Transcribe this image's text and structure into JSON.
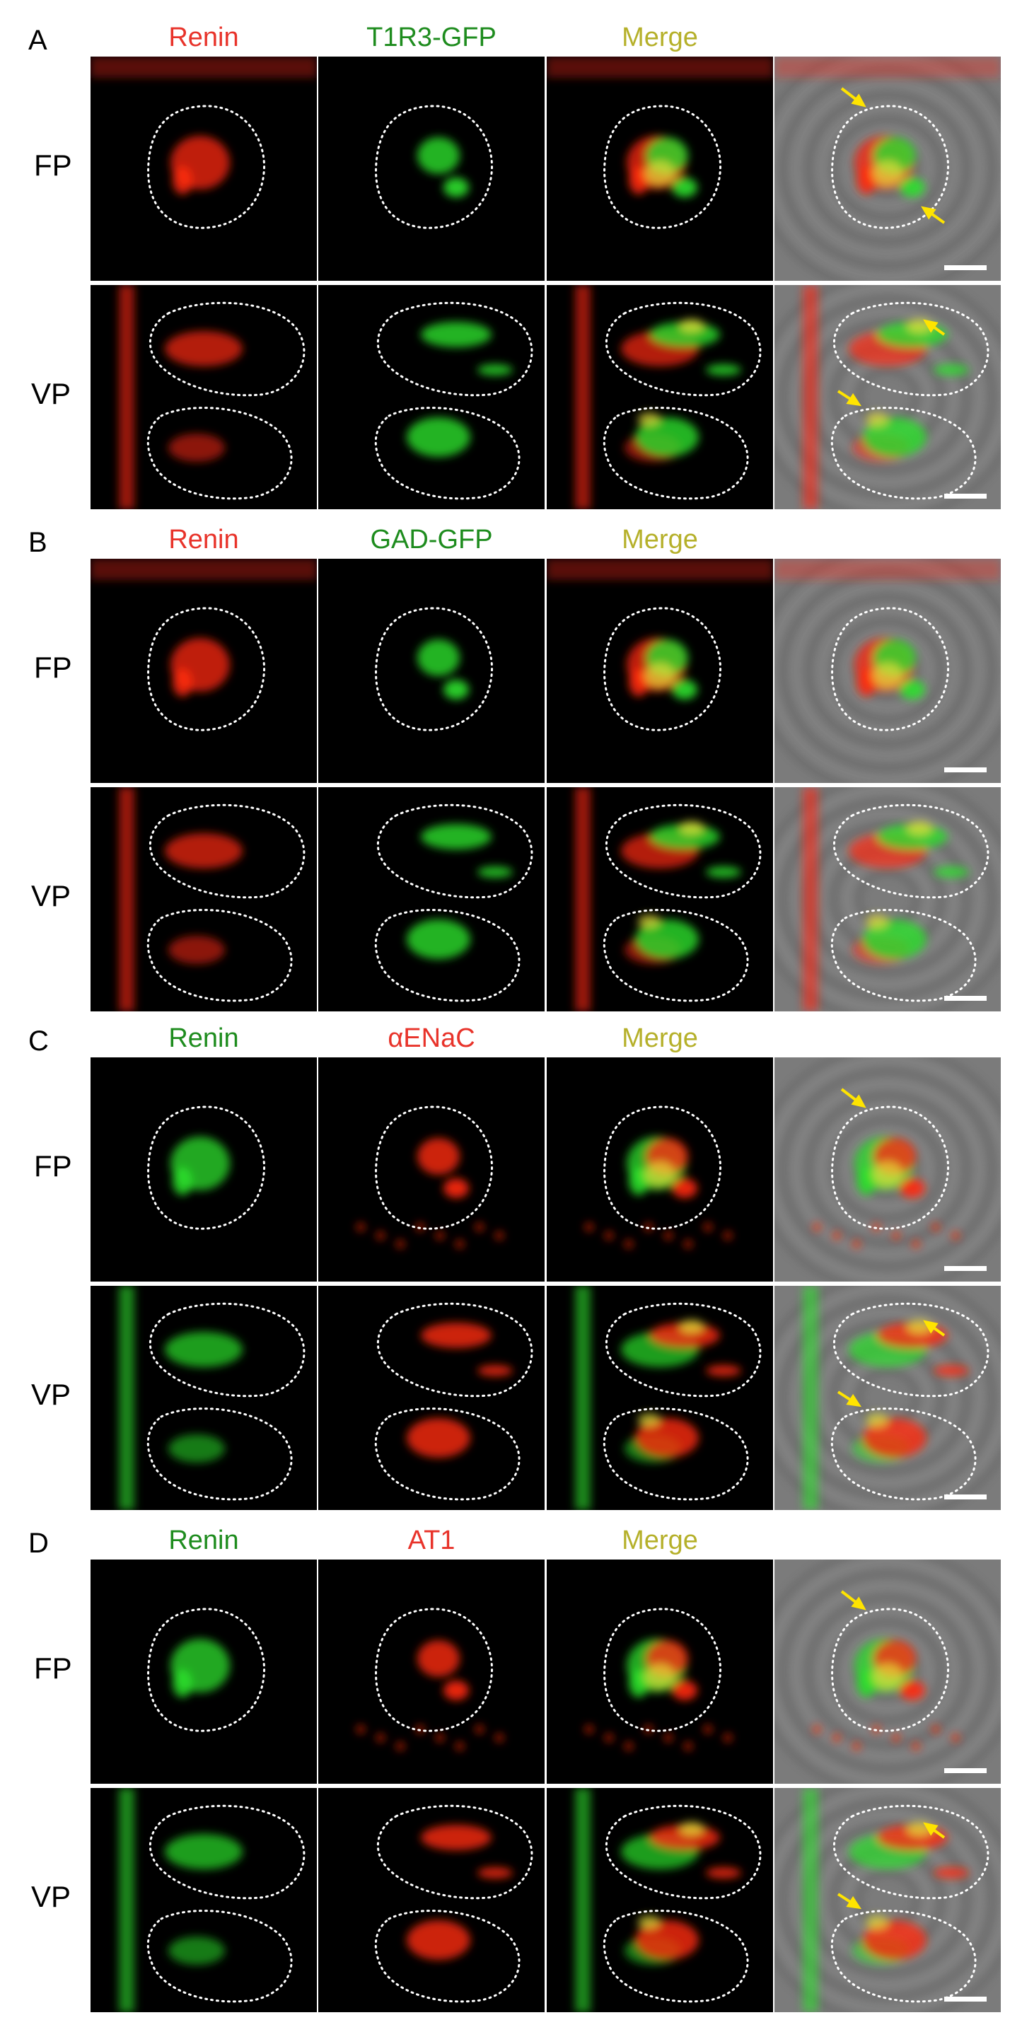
{
  "colors": {
    "red_label": "#E8332A",
    "green_label": "#1E8C1E",
    "merge_label": "#B5B02A",
    "red_signal": "#FF2A10",
    "green_signal": "#2BE02B",
    "yellow_signal": "#E6E03A",
    "arrow": "#FFE400",
    "outline": "#FFFFFF",
    "scale_bar": "#FFFFFF"
  },
  "row_labels": {
    "fp": "FP",
    "vp": "VP"
  },
  "panels": [
    {
      "letter": "A",
      "columns": [
        {
          "text": "Renin",
          "color": "red"
        },
        {
          "text": "T1R3-GFP",
          "color": "green"
        },
        {
          "text": "Merge",
          "color": "merge"
        },
        {
          "text": "",
          "color": "merge"
        }
      ],
      "channel_a": "red",
      "channel_b": "green",
      "fp_arrows": 2,
      "vp_arrows": 2
    },
    {
      "letter": "B",
      "columns": [
        {
          "text": "Renin",
          "color": "red"
        },
        {
          "text": "GAD-GFP",
          "color": "green"
        },
        {
          "text": "Merge",
          "color": "merge"
        },
        {
          "text": "",
          "color": "merge"
        }
      ],
      "channel_a": "red",
      "channel_b": "green",
      "fp_arrows": 0,
      "vp_arrows": 0
    },
    {
      "letter": "C",
      "columns": [
        {
          "text": "Renin",
          "color": "green"
        },
        {
          "text": "αENaC",
          "color": "red"
        },
        {
          "text": "Merge",
          "color": "merge"
        },
        {
          "text": "",
          "color": "merge"
        }
      ],
      "channel_a": "green",
      "channel_b": "red",
      "fp_arrows": 1,
      "vp_arrows": 2
    },
    {
      "letter": "D",
      "columns": [
        {
          "text": "Renin",
          "color": "green"
        },
        {
          "text": "AT1",
          "color": "red"
        },
        {
          "text": "Merge",
          "color": "merge"
        },
        {
          "text": "",
          "color": "merge"
        }
      ],
      "channel_a": "green",
      "channel_b": "red",
      "fp_arrows": 1,
      "vp_arrows": 2
    }
  ]
}
